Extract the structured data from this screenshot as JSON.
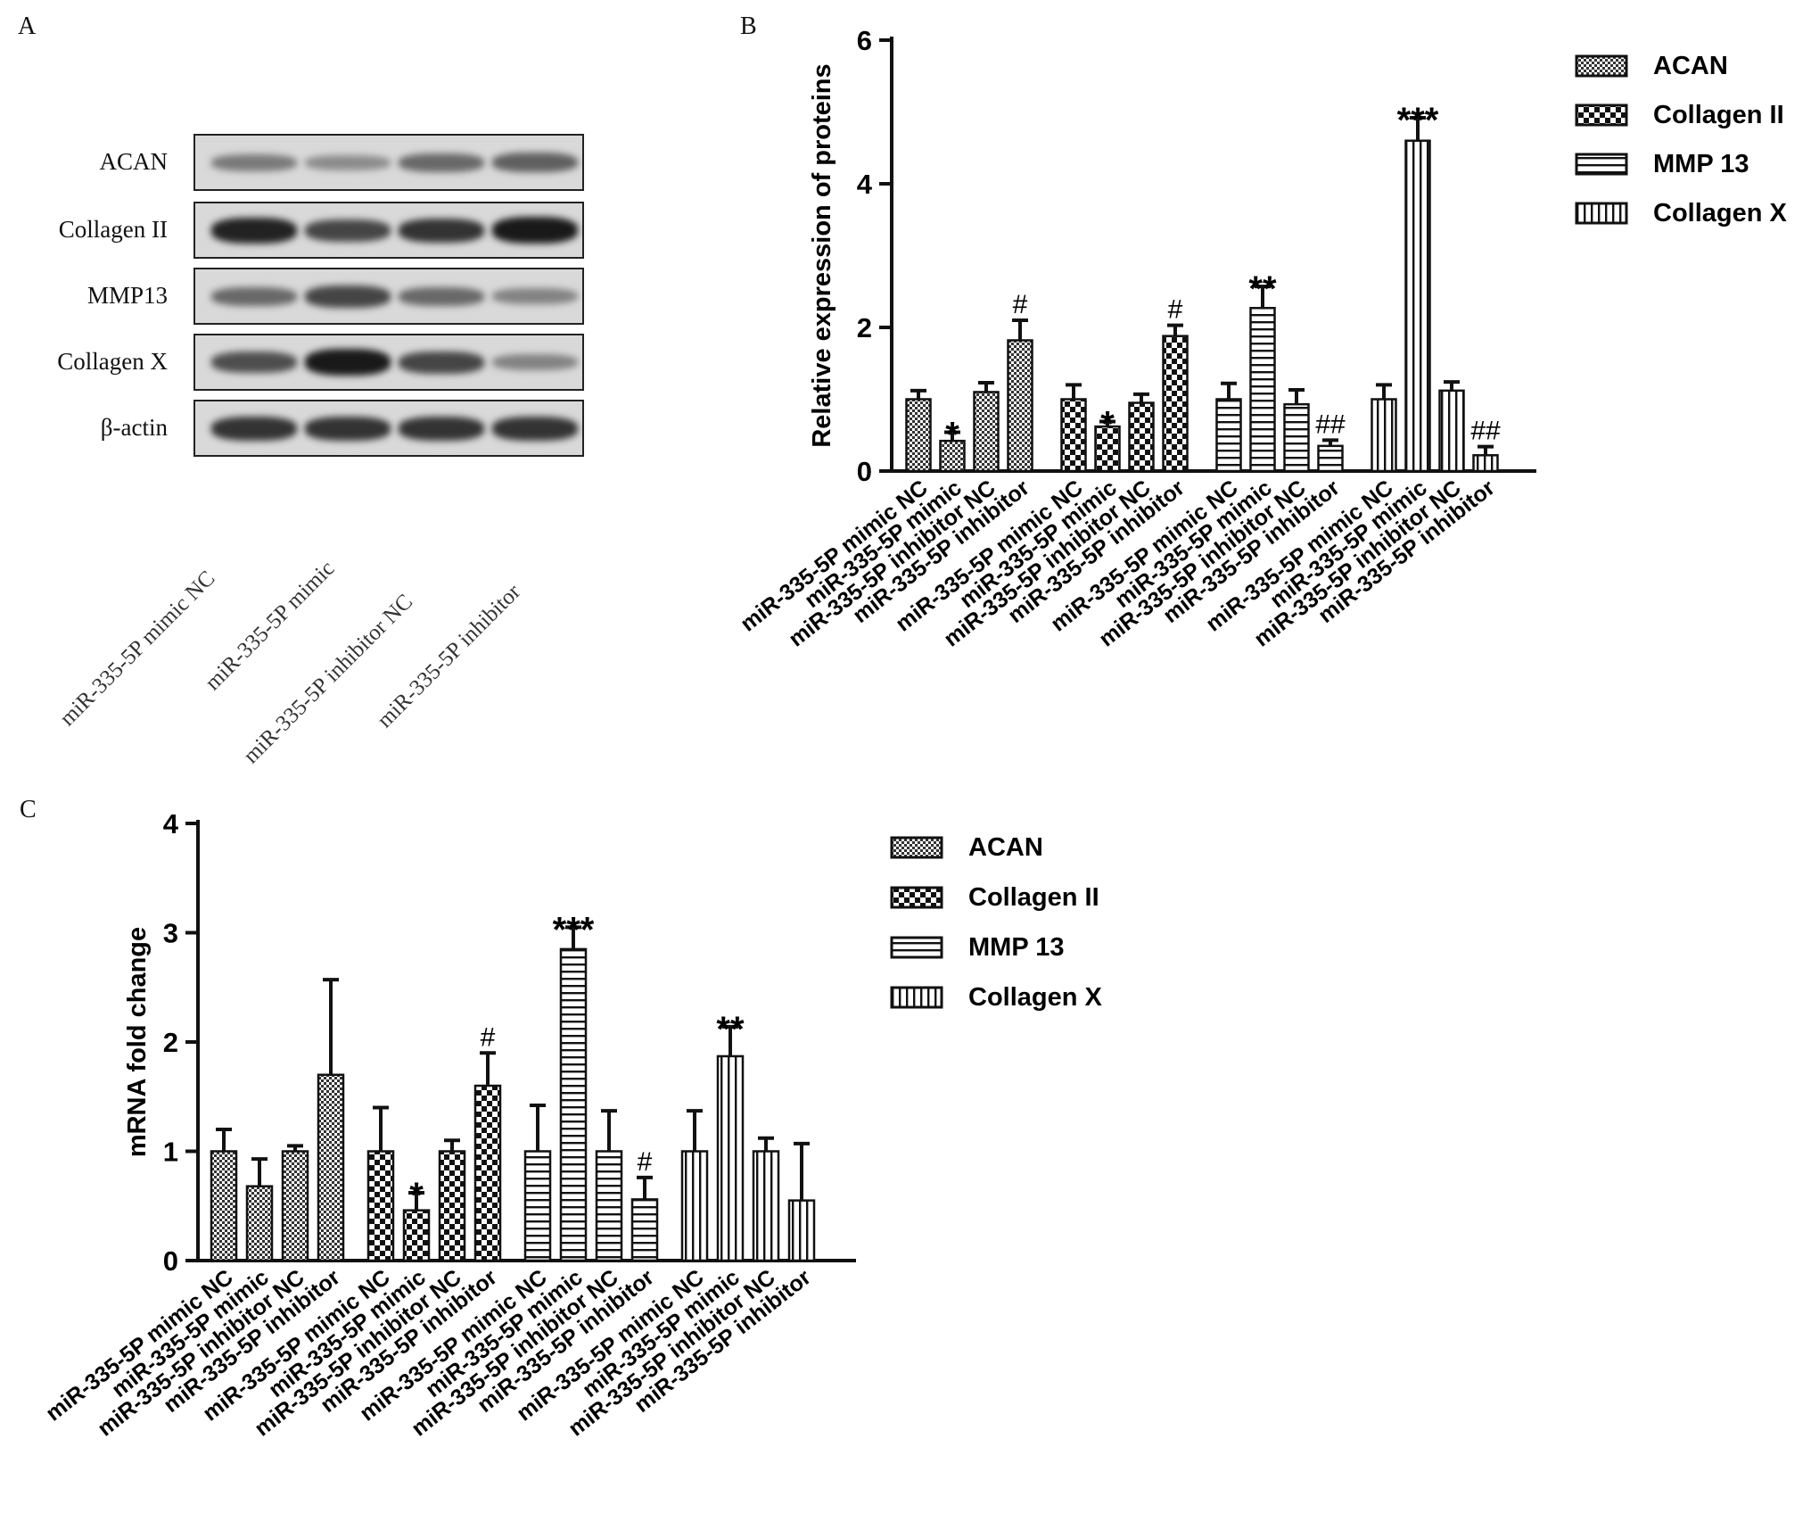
{
  "panel_a": {
    "letter": "A",
    "rows": [
      {
        "label": "ACAN",
        "intensity": [
          0.45,
          0.35,
          0.55,
          0.6
        ]
      },
      {
        "label": "Collagen II",
        "intensity": [
          0.95,
          0.75,
          0.85,
          1.0
        ]
      },
      {
        "label": "MMP13",
        "intensity": [
          0.55,
          0.75,
          0.55,
          0.4
        ]
      },
      {
        "label": "Collagen X",
        "intensity": [
          0.7,
          1.0,
          0.75,
          0.4
        ]
      },
      {
        "label": "β-actin",
        "intensity": [
          0.85,
          0.85,
          0.85,
          0.85
        ]
      }
    ],
    "lanes": [
      "miR-335-5P mimic NC",
      "miR-335-5P mimic",
      "miR-335-5P inhibitor NC",
      "miR-335-5P inhibitor"
    ]
  },
  "chart_data": [
    {
      "type": "bar",
      "panel": "B",
      "ylabel": "Relative  expression of proteins",
      "ylim": [
        0,
        6
      ],
      "yticks": [
        0,
        2,
        4,
        6
      ],
      "categories": [
        "miR-335-5P mimic NC",
        "miR-335-5P mimic",
        "miR-335-5P inhibitor NC",
        "miR-335-5P inhibitor"
      ],
      "series": [
        {
          "name": "ACAN",
          "values": [
            1.0,
            0.42,
            1.1,
            1.82
          ],
          "errors": [
            0.12,
            0.12,
            0.13,
            0.28
          ],
          "annotations": [
            "",
            "*",
            "",
            "#"
          ]
        },
        {
          "name": "Collagen II",
          "values": [
            1.0,
            0.62,
            0.95,
            1.88
          ],
          "errors": [
            0.2,
            0.07,
            0.12,
            0.15
          ],
          "annotations": [
            "",
            "*",
            "",
            "#"
          ]
        },
        {
          "name": "MMP 13",
          "values": [
            1.0,
            2.27,
            0.93,
            0.35
          ],
          "errors": [
            0.22,
            0.3,
            0.2,
            0.08
          ],
          "annotations": [
            "",
            "**",
            "",
            "##"
          ]
        },
        {
          "name": "Collagen X",
          "values": [
            1.0,
            4.6,
            1.12,
            0.22
          ],
          "errors": [
            0.2,
            0.32,
            0.12,
            0.12
          ],
          "annotations": [
            "",
            "***",
            "",
            "##"
          ]
        }
      ],
      "legend": "right"
    },
    {
      "type": "bar",
      "panel": "C",
      "ylabel": "mRNA fold change",
      "ylim": [
        0,
        4
      ],
      "yticks": [
        0,
        1,
        2,
        3,
        4
      ],
      "categories": [
        "miR-335-5P mimic NC",
        "miR-335-5P mimic",
        "miR-335-5P inhibitor NC",
        "miR-335-5P inhibitor"
      ],
      "series": [
        {
          "name": "ACAN",
          "values": [
            1.0,
            0.68,
            1.0,
            1.7
          ],
          "errors": [
            0.2,
            0.25,
            0.05,
            0.87
          ],
          "annotations": [
            "",
            "",
            "",
            ""
          ]
        },
        {
          "name": "Collagen II",
          "values": [
            1.0,
            0.46,
            1.0,
            1.6
          ],
          "errors": [
            0.4,
            0.16,
            0.1,
            0.3
          ],
          "annotations": [
            "",
            "*",
            "",
            "#"
          ]
        },
        {
          "name": "MMP 13",
          "values": [
            1.0,
            2.85,
            1.0,
            0.56
          ],
          "errors": [
            0.42,
            0.2,
            0.37,
            0.2
          ],
          "annotations": [
            "",
            "***",
            "",
            "#"
          ]
        },
        {
          "name": "Collagen X",
          "values": [
            1.0,
            1.87,
            1.0,
            0.55
          ],
          "errors": [
            0.37,
            0.27,
            0.12,
            0.52
          ],
          "annotations": [
            "",
            "**",
            "",
            ""
          ]
        }
      ],
      "legend": "right"
    }
  ],
  "panel_b_letter": "B",
  "panel_c_letter": "C"
}
